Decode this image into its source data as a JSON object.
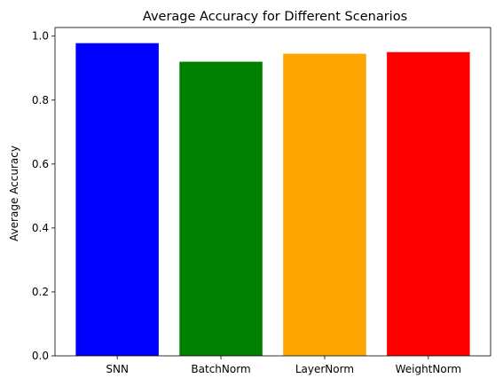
{
  "chart_data": {
    "type": "bar",
    "title": "Average Accuracy for Different Scenarios",
    "xlabel": "",
    "ylabel": "Average Accuracy",
    "categories": [
      "SNN",
      "BatchNorm",
      "LayerNorm",
      "WeightNorm"
    ],
    "values": [
      0.978,
      0.92,
      0.945,
      0.95
    ],
    "colors": [
      "#0000ff",
      "#008000",
      "#ffa500",
      "#ff0000"
    ],
    "ylim": [
      0,
      1.027
    ],
    "yticks": [
      0.0,
      0.2,
      0.4,
      0.6,
      0.8,
      1.0
    ],
    "ytick_labels": [
      "0.0",
      "0.2",
      "0.4",
      "0.6",
      "0.8",
      "1.0"
    ],
    "grid": false,
    "legend": "none"
  }
}
